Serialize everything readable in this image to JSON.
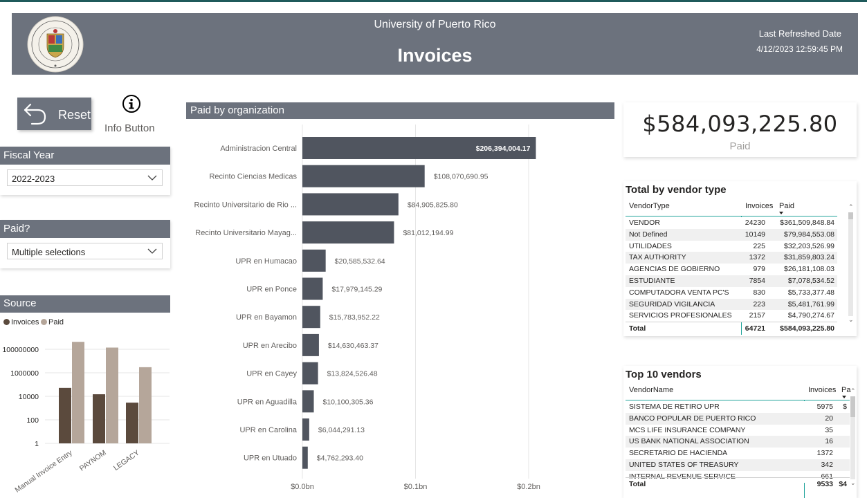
{
  "header": {
    "university": "University of Puerto Rico",
    "title": "Invoices",
    "refreshed_label": "Last Refreshed Date",
    "refreshed_value": "4/12/2023 12:59:45 PM"
  },
  "controls": {
    "reset_label": "Reset",
    "info_label": "Info Button"
  },
  "slicers": {
    "fiscal_year": {
      "title": "Fiscal Year",
      "value": "2022-2023"
    },
    "paid": {
      "title": "Paid?",
      "value": "Multiple selections"
    }
  },
  "colors": {
    "header_bg": "#6c727d",
    "bar": "#50555f",
    "invoices": "#5b4a3d",
    "paid": "#b5a69a",
    "accent": "#1f5a5b"
  },
  "chart_data": [
    {
      "type": "bar",
      "orientation": "horizontal",
      "title": "Paid by organization",
      "categories": [
        "Administracion Central",
        "Recinto Ciencias Medicas",
        "Recinto Universitario de Rio ...",
        "Recinto Universitario Mayag...",
        "UPR en Humacao",
        "UPR en Ponce",
        "UPR en Bayamon",
        "UPR en Arecibo",
        "UPR en Cayey",
        "UPR en Aguadilla",
        "UPR en Carolina",
        "UPR en Utuado"
      ],
      "values": [
        206394004.17,
        108070690.95,
        84905825.8,
        81012194.99,
        20585532.64,
        17979145.29,
        15783952.22,
        14630463.37,
        13824526.48,
        10100305.36,
        6044291.13,
        4762293.4
      ],
      "data_labels": [
        "$206,394,004.17",
        "$108,070,690.95",
        "$84,905,825.80",
        "$81,012,194.99",
        "$20,585,532.64",
        "$17,979,145.29",
        "$15,783,952.22",
        "$14,630,463.37",
        "$13,824,526.48",
        "$10,100,305.36",
        "$6,044,291.13",
        "$4,762,293.40"
      ],
      "xlim": [
        0,
        220000000
      ],
      "xticks": [
        0,
        100000000,
        200000000
      ],
      "xtick_labels": [
        "$0.0bn",
        "$0.1bn",
        "$0.2bn"
      ],
      "grid": true
    },
    {
      "type": "bar",
      "title": "Source",
      "categories": [
        "Manual Invoice Entry",
        "PAYNOM",
        "LEGACY"
      ],
      "series": [
        {
          "name": "Invoices",
          "values": [
            52000,
            15000,
            2900
          ]
        },
        {
          "name": "Paid",
          "values": [
            430000000,
            140000000,
            3000000
          ]
        }
      ],
      "yscale": "log",
      "ylim": [
        1,
        1000000000
      ],
      "yticks": [
        1,
        100,
        10000,
        1000000,
        100000000
      ],
      "ytick_labels": [
        "1",
        "100",
        "10000",
        "1000000",
        "100000000"
      ],
      "legend": "top-left",
      "grid": true
    }
  ],
  "kpi": {
    "value": "$584,093,225.80",
    "label": "Paid"
  },
  "vendor_type_table": {
    "title": "Total by vendor type",
    "columns": [
      "VendorType",
      "Invoices",
      "Paid"
    ],
    "rows": [
      [
        "VENDOR",
        "24230",
        "$361,509,848.84"
      ],
      [
        "Not Defined",
        "10149",
        "$79,984,553.08"
      ],
      [
        "UTILIDADES",
        "225",
        "$32,203,526.99"
      ],
      [
        "TAX AUTHORITY",
        "1372",
        "$31,859,803.24"
      ],
      [
        "AGENCIAS DE GOBIERNO",
        "979",
        "$26,181,108.03"
      ],
      [
        "ESTUDIANTE",
        "7854",
        "$7,078,534.52"
      ],
      [
        "COMPUTADORA VENTA PC'S",
        "830",
        "$5,733,377.48"
      ],
      [
        "SEGURIDAD VIGILANCIA",
        "223",
        "$5,481,761.99"
      ],
      [
        "SERVICIOS PROFESIONALES",
        "2157",
        "$4,790,274.67"
      ]
    ],
    "total": [
      "Total",
      "64721",
      "$584,093,225.80"
    ]
  },
  "top_vendors_table": {
    "title": "Top 10 vendors",
    "columns": [
      "VendorName",
      "Invoices",
      "Pa"
    ],
    "rows": [
      [
        "SISTEMA DE RETIRO UPR",
        "5975",
        "$"
      ],
      [
        "BANCO POPULAR DE PUERTO RICO",
        "20",
        ""
      ],
      [
        "MCS LIFE INSURANCE COMPANY",
        "35",
        ""
      ],
      [
        "US BANK NATIONAL ASSOCIATION",
        "16",
        ""
      ],
      [
        "SECRETARIO DE HACIENDA",
        "1372",
        ""
      ],
      [
        "UNITED STATES OF TREASURY",
        "342",
        ""
      ],
      [
        "INTERNAL REVENUE SERVICE",
        "661",
        ""
      ]
    ],
    "total": [
      "Total",
      "9533",
      "$4"
    ]
  }
}
